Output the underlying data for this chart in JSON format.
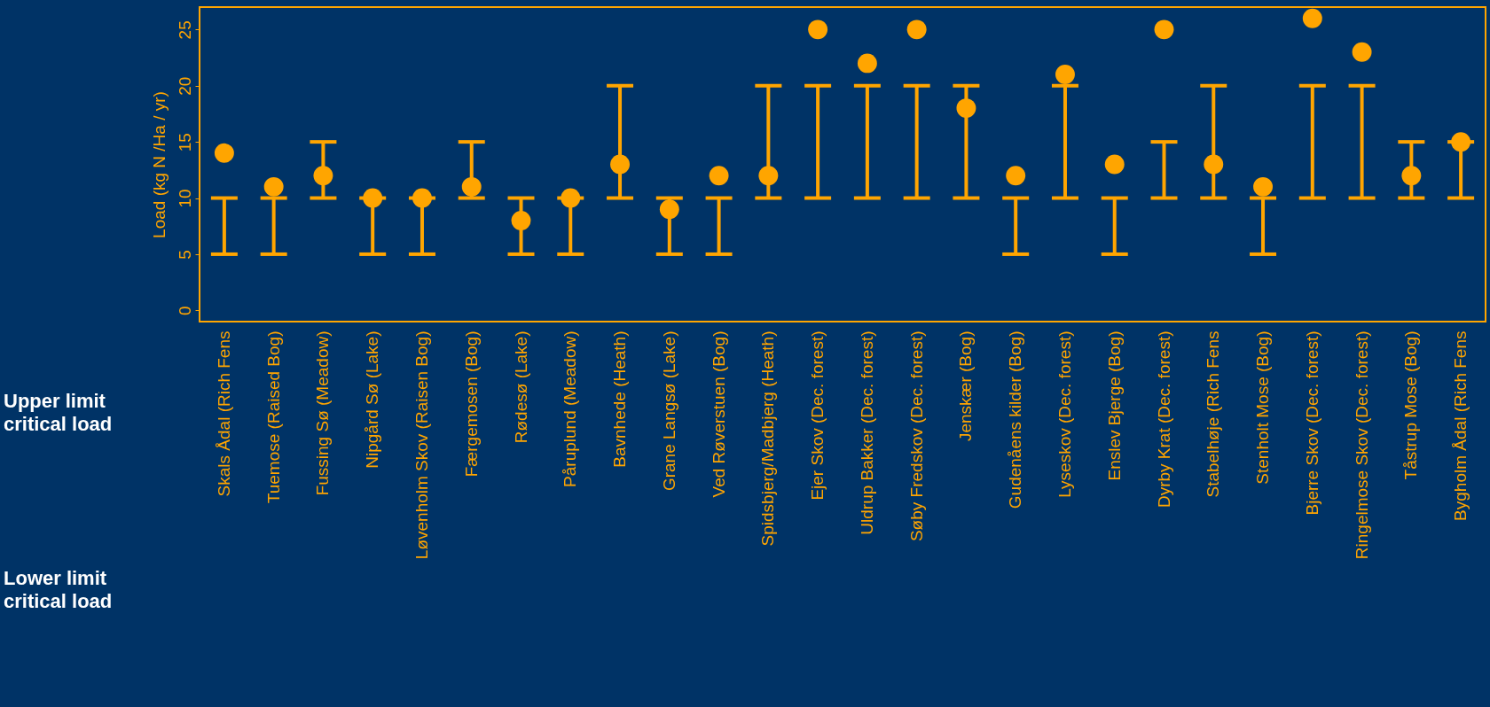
{
  "chart_data": {
    "type": "scatter",
    "ylabel": "Load (kg N /Ha / yr)",
    "categories": [
      "Skals Ådal (Rich Fens",
      "Tuemose (Raised Bog)",
      "Fussing Sø (Meadow)",
      "Nipgård Sø (Lake)",
      "Løvenholm Skov (Raisen Bog)",
      "Færgemosen (Bog)",
      "Rødesø (Lake)",
      "Påruplund (Meadow)",
      "Bavnhede (Heath)",
      "Grane Langsø (Lake)",
      "Ved Røverstuen (Bog)",
      "Spidsbjerg/Madbjerg (Heath)",
      "Ejer Skov (Dec. forest)",
      "Uldrup Bakker (Dec. forest)",
      "Søby Fredskov (Dec. forest)",
      "Jenskær (Bog)",
      "Gudenåens kilder (Bog)",
      "Lyseskov (Dec. forest)",
      "Enslev Bjerge (Bog)",
      "Dyrby Krat (Dec. forest)",
      "Stabelhøje (Rich Fens",
      "Stenholt Mose (Bog)",
      "Bjerre Skov (Dec. forest)",
      "Ringelmose Skov (Dec. forest)",
      "Tåstrup Mose (Bog)",
      "Bygholm Ådal (Rich Fens"
    ],
    "series": [
      {
        "color": "#ffa500",
        "values": [
          14,
          11,
          12,
          10,
          10,
          11,
          8,
          10,
          13,
          9,
          12,
          12,
          25,
          22,
          25,
          18,
          12,
          21,
          13,
          25,
          13,
          11,
          26,
          23,
          12,
          15
        ],
        "errors": [
          [
            5,
            10
          ],
          [
            5,
            10
          ],
          [
            10,
            15
          ],
          [
            5,
            10
          ],
          [
            5,
            10
          ],
          [
            10,
            15
          ],
          [
            5,
            10
          ],
          [
            5,
            10
          ],
          [
            10,
            20
          ],
          [
            5,
            10
          ],
          [
            5,
            10
          ],
          [
            10,
            20
          ],
          [
            10,
            20
          ],
          [
            10,
            20
          ],
          [
            10,
            20
          ],
          [
            10,
            20
          ],
          [
            5,
            10
          ],
          [
            10,
            20
          ],
          [
            5,
            10
          ],
          [
            10,
            15
          ],
          [
            10,
            20
          ],
          [
            5,
            10
          ],
          [
            10,
            20
          ],
          [
            10,
            20
          ],
          [
            10,
            15
          ],
          [
            10,
            15
          ]
        ]
      }
    ],
    "ylim": [
      -1,
      27
    ],
    "yticks": [
      0,
      5,
      10,
      15,
      20,
      25
    ],
    "marker": "circle",
    "annotations": [
      "Upper limit critical load",
      "Lower limit critical load"
    ]
  }
}
